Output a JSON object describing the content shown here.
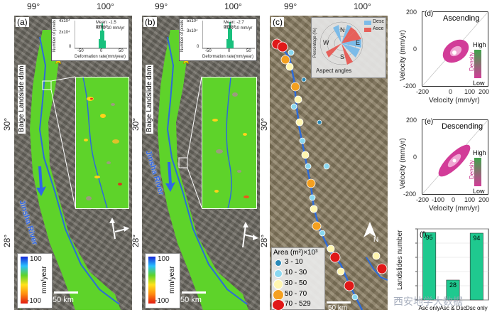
{
  "panels": {
    "a": {
      "label": "(a)",
      "dam": "Baige Landslide dam",
      "river": "Jinsha River",
      "hist_stats1": "Mean: -1.5 mm/yr",
      "hist_stats2": "STD: 10 mm/yr",
      "hist_ylabel": "Number of pixels",
      "hist_xlabel": "Deformation rate(mm/year)",
      "hist_yticks": [
        "4x10⁴",
        "3x10⁴",
        "2x10⁴",
        "1x10⁴",
        "0"
      ],
      "hist_xticks": [
        "-50",
        "0",
        "50"
      ],
      "cb_max": "100",
      "cb_min": "-100",
      "cb_unit": "mm/year",
      "scale": "50 km"
    },
    "b": {
      "label": "(b)",
      "dam": "Baige Landslide dam",
      "river": "Jinsha River",
      "hist_stats1": "Mean: -2.7 mm/yr",
      "hist_stats2": "STD: 10 mm/yr",
      "hist_ylabel": "Number of pixels",
      "hist_xlabel": "Deformation rate(mm/year)",
      "hist_yticks": [
        "5x10⁴",
        "4x10⁴",
        "3x10⁴",
        "2x10⁴",
        "1x10⁴",
        "0"
      ],
      "hist_xticks": [
        "-50",
        "0",
        "50"
      ],
      "cb_max": "100",
      "cb_min": "-100",
      "cb_unit": "mm/year",
      "scale": "50 km"
    },
    "c": {
      "label": "(c)",
      "rose_ylabel": "Percentage (%)",
      "rose_desc": "Desc",
      "rose_asce": "Asce",
      "rose_title": "Aspect angles",
      "rose_dirs": [
        "N",
        "E",
        "S",
        "W"
      ],
      "rose_rings": [
        "0",
        "5",
        "10",
        "15"
      ],
      "legend_title": "Area (m²)×10³",
      "legend_items": [
        "3 - 10",
        "10 - 30",
        "30 - 50",
        "50 - 70",
        "70 - 529"
      ],
      "north": "N",
      "scale": "50 km"
    }
  },
  "axes_labels": {
    "lon1": "99°",
    "lon2": "100°",
    "lat1": "30°",
    "lat2": "28°"
  },
  "scatter": {
    "d": {
      "label": "(d)",
      "title": "Ascending",
      "ylabel": "Velocity (mm/yr)",
      "xlabel": "Velocity (mm/yr)",
      "high": "High",
      "density": "Density",
      "low": "Low",
      "xticks": [
        "-200",
        "0",
        "100",
        "200"
      ],
      "yticks": [
        "200",
        "100",
        "0",
        "-100",
        "-200"
      ]
    },
    "e": {
      "label": "(e)",
      "title": "Descending",
      "ylabel": "Velocity (mm/yr)",
      "xlabel": "Velocity (mm/yr)",
      "high": "High",
      "density": "Density",
      "low": "Low",
      "xticks": [
        "-200",
        "-100",
        "0",
        "100",
        "200"
      ],
      "yticks": [
        "200",
        "100",
        "0",
        "-100",
        "-200"
      ]
    }
  },
  "chart_data": {
    "type": "bar",
    "label": "(f)",
    "categories": [
      "Asc only",
      "Asc & Dsc",
      "Dsc only"
    ],
    "values": [
      95,
      28,
      94
    ],
    "ylabel": "Landslides number",
    "ylim": [
      0,
      100
    ],
    "yticks": [
      0,
      20,
      40,
      60,
      80,
      100
    ],
    "bar_color": "#1fc98f",
    "value_labels": [
      "95",
      "28",
      "94"
    ]
  },
  "watermark": "西安地学大数据"
}
